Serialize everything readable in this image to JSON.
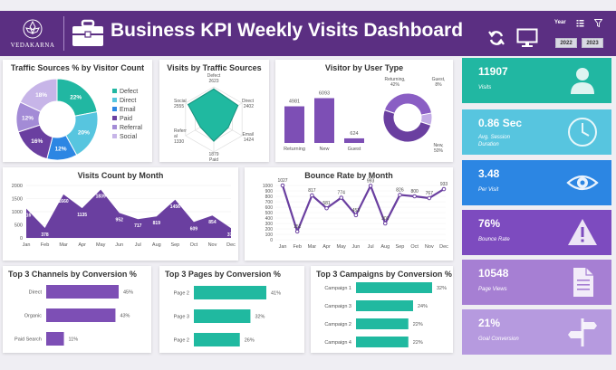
{
  "header": {
    "logo_text": "VEDAKARNA",
    "title": "Business KPI Weekly Visits Dashboard",
    "year_label": "Year",
    "year_options": [
      "2022",
      "2023"
    ],
    "icons": [
      "refresh-icon",
      "monitor-icon",
      "multi-select-icon",
      "clear-filter-icon"
    ]
  },
  "colors": {
    "header": "#5b2f82",
    "purple": "#7d4fb5",
    "teal": "#20b9a0",
    "kpi": [
      "#21b7a2",
      "#57c5df",
      "#2c86e3",
      "#7d4bbf",
      "#a67fd3",
      "#b69adf"
    ]
  },
  "traffic_sources": {
    "title": "Traffic Sources % by Visitor Count",
    "chart_data": {
      "type": "pie",
      "categories": [
        "Defect",
        "Direct",
        "Email",
        "Paid",
        "Referral",
        "Social"
      ],
      "values": [
        22,
        20,
        12,
        16,
        12,
        18
      ],
      "labels": [
        "22%",
        "20%",
        "12%",
        "16%",
        "12%",
        "18%"
      ],
      "colors": [
        "#21b7a2",
        "#57c5df",
        "#2c86e3",
        "#6a3fa0",
        "#a38bd6",
        "#c7b5e8"
      ],
      "legend": "right"
    }
  },
  "visits_by_source": {
    "title": "Visits by Traffic Sources",
    "chart_data": {
      "type": "radar",
      "axes": [
        "Defect",
        "Direct",
        "Email",
        "Paid",
        "Referral",
        "Social"
      ],
      "values": [
        2623,
        2402,
        1424,
        1879,
        1330,
        2555
      ],
      "point_labels": [
        "Defect\n2623",
        "Direct\n2402",
        "Email\n1424",
        "1879\nPaid",
        "Referr\nal\n1330",
        "Social\n2555"
      ]
    }
  },
  "visitor_type": {
    "title": "Visitor by User Type",
    "bar_chart": {
      "type": "bar",
      "categories": [
        "Returning",
        "New",
        "Guest"
      ],
      "values": [
        4981,
        6093,
        624
      ],
      "labels": [
        "4981",
        "6093",
        "624"
      ]
    },
    "donut_chart": {
      "type": "pie",
      "categories": [
        "Returning",
        "Guest",
        "New"
      ],
      "values": [
        42,
        8,
        50
      ],
      "labels": [
        "Returning,\n42%",
        "Guest,\n8%",
        "New,\n50%"
      ]
    }
  },
  "kpis": [
    {
      "value": "11907",
      "label": "Visits",
      "icon": "user-icon"
    },
    {
      "value": "0.86 Sec",
      "label": "Avg. Session\nDuration",
      "icon": "clock-icon"
    },
    {
      "value": "3.48",
      "label": "Per Visit",
      "icon": "eye-icon"
    },
    {
      "value": "76%",
      "label": "Bounce Rate",
      "icon": "warning-icon"
    },
    {
      "value": "10548",
      "label": "Page Views",
      "icon": "document-icon"
    },
    {
      "value": "21%",
      "label": "Goal Conversion",
      "icon": "signpost-icon"
    }
  ],
  "visits_by_month": {
    "title": "Visits Count by Month",
    "chart_data": {
      "type": "area",
      "x": [
        "Jan",
        "Feb",
        "Mar",
        "Apr",
        "May",
        "Jun",
        "Jul",
        "Aug",
        "Sep",
        "Oct",
        "Nov",
        "Dec"
      ],
      "values": [
        1116,
        378,
        1660,
        1135,
        1839,
        952,
        717,
        819,
        1456,
        609,
        854,
        372
      ],
      "ylim": [
        0,
        2000
      ],
      "yticks": [
        "0",
        "500",
        "1000",
        "1500",
        "2000"
      ]
    }
  },
  "bounce_by_month": {
    "title": "Bounce Rate by Month",
    "chart_data": {
      "type": "line",
      "x": [
        "Jan",
        "Feb",
        "Mar",
        "Apr",
        "May",
        "Jun",
        "Jul",
        "Aug",
        "Sep",
        "Oct",
        "Nov",
        "Dec"
      ],
      "values": [
        1027,
        152,
        817,
        581,
        774,
        453,
        993,
        301,
        826,
        800,
        767,
        933
      ],
      "ylim": [
        0,
        1000
      ],
      "yticks": [
        "0",
        "100",
        "200",
        "300",
        "400",
        "500",
        "600",
        "700",
        "800",
        "900",
        "1000"
      ]
    }
  },
  "top_channels": {
    "title": "Top 3 Channels by Conversion %",
    "chart_data": {
      "type": "bar",
      "orientation": "horizontal",
      "categories": [
        "Direct",
        "Organic",
        "Paid Search"
      ],
      "values": [
        45,
        43,
        11
      ],
      "labels": [
        "45%",
        "43%",
        "11%"
      ]
    }
  },
  "top_pages": {
    "title": "Top 3 Pages by Conversion %",
    "chart_data": {
      "type": "bar",
      "orientation": "horizontal",
      "categories": [
        "Page 2",
        "Page 3",
        "Page 2"
      ],
      "values": [
        41,
        32,
        26
      ],
      "labels": [
        "41%",
        "32%",
        "26%"
      ]
    }
  },
  "top_campaigns": {
    "title": "Top 3 Campaigns by Conversion %",
    "chart_data": {
      "type": "bar",
      "orientation": "horizontal",
      "categories": [
        "Campaign 1",
        "Campaign 3",
        "Campaign 2",
        "Campaign 4"
      ],
      "values": [
        32,
        24,
        22,
        22
      ],
      "labels": [
        "32%",
        "24%",
        "22%",
        "22%"
      ]
    }
  }
}
